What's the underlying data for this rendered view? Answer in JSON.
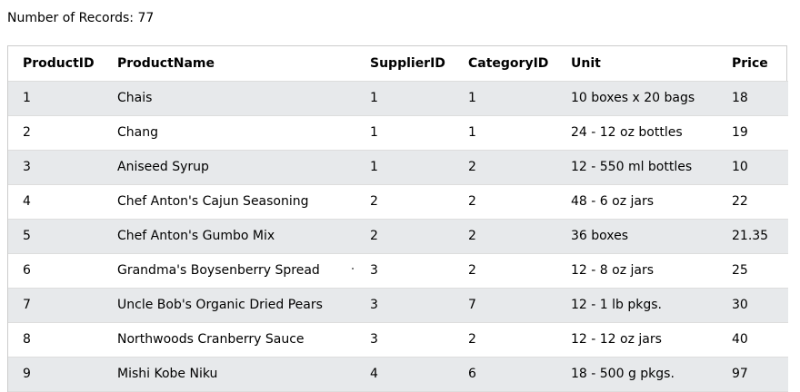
{
  "header": {
    "record_count_text": "Number of Records: 77"
  },
  "table": {
    "columns": [
      "ProductID",
      "ProductName",
      "SupplierID",
      "CategoryID",
      "Unit",
      "Price"
    ],
    "rows": [
      [
        "1",
        "Chais",
        "1",
        "1",
        "10 boxes x 20 bags",
        "18"
      ],
      [
        "2",
        "Chang",
        "1",
        "1",
        "24 - 12 oz bottles",
        "19"
      ],
      [
        "3",
        "Aniseed Syrup",
        "1",
        "2",
        "12 - 550 ml bottles",
        "10"
      ],
      [
        "4",
        "Chef Anton's Cajun Seasoning",
        "2",
        "2",
        "48 - 6 oz jars",
        "22"
      ],
      [
        "5",
        "Chef Anton's Gumbo Mix",
        "2",
        "2",
        "36 boxes",
        "21.35"
      ],
      [
        "6",
        "Grandma's Boysenberry Spread",
        "3",
        "2",
        "12 - 8 oz jars",
        "25"
      ],
      [
        "7",
        "Uncle Bob's Organic Dried Pears",
        "3",
        "7",
        "12 - 1 lb pkgs.",
        "30"
      ],
      [
        "8",
        "Northwoods Cranberry Sauce",
        "3",
        "2",
        "12 - 12 oz jars",
        "40"
      ],
      [
        "9",
        "Mishi Kobe Niku",
        "4",
        "6",
        "18 - 500 g pkgs.",
        "97"
      ]
    ]
  },
  "colors": {
    "row_stripe": "#e7e9eb",
    "border": "#cccccc"
  }
}
